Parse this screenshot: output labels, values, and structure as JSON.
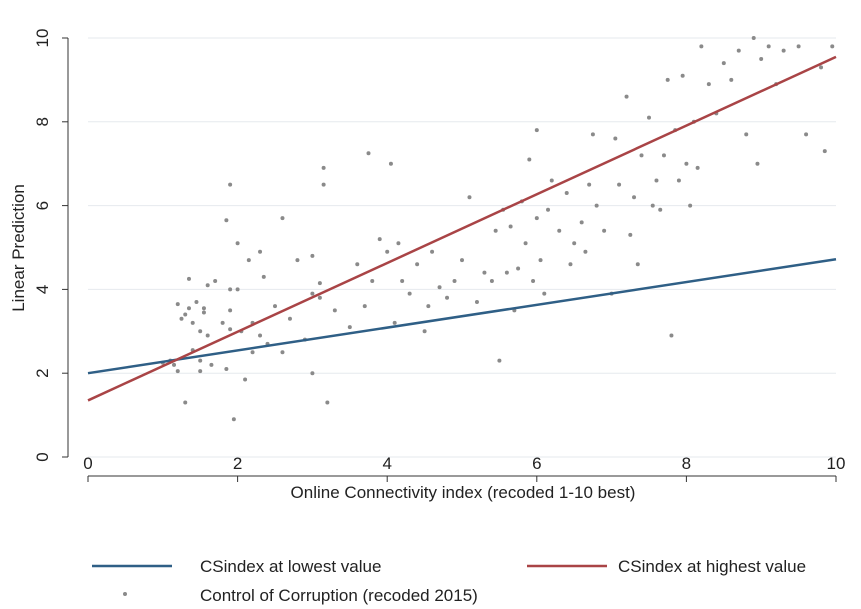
{
  "chart_data": {
    "type": "scatter",
    "title": "",
    "xlabel": "Online Connectivity index (recoded 1-10 best)",
    "ylabel": "Linear Prediction",
    "xlim": [
      0,
      10
    ],
    "ylim": [
      0,
      10
    ],
    "xticks": [
      "0",
      "2",
      "4",
      "6",
      "8",
      "10"
    ],
    "yticks": [
      "0",
      "2",
      "4",
      "6",
      "8",
      "10"
    ],
    "grid": "horizontal",
    "legend_position": "bottom",
    "lines": [
      {
        "name": "CSindex at lowest value",
        "color": "#2f5f86",
        "x": [
          0,
          10
        ],
        "y": [
          2.0,
          4.72
        ]
      },
      {
        "name": "CSindex at highest value",
        "color": "#a94446",
        "x": [
          0,
          10
        ],
        "y": [
          1.35,
          9.55
        ]
      }
    ],
    "scatter": {
      "name": "Control of Corruption (recoded 2015)",
      "color": "#8a8a8a",
      "points": [
        [
          1.0,
          2.25
        ],
        [
          1.1,
          2.3
        ],
        [
          1.15,
          2.2
        ],
        [
          1.2,
          2.05
        ],
        [
          1.2,
          3.65
        ],
        [
          1.25,
          3.3
        ],
        [
          1.3,
          3.4
        ],
        [
          1.3,
          1.3
        ],
        [
          1.35,
          3.55
        ],
        [
          1.35,
          4.25
        ],
        [
          1.4,
          3.2
        ],
        [
          1.4,
          2.55
        ],
        [
          1.45,
          3.7
        ],
        [
          1.5,
          3.0
        ],
        [
          1.5,
          2.3
        ],
        [
          1.5,
          2.05
        ],
        [
          1.55,
          3.45
        ],
        [
          1.55,
          3.55
        ],
        [
          1.6,
          4.1
        ],
        [
          1.6,
          2.9
        ],
        [
          1.65,
          2.2
        ],
        [
          1.7,
          4.2
        ],
        [
          1.8,
          3.2
        ],
        [
          1.85,
          5.65
        ],
        [
          1.85,
          2.1
        ],
        [
          1.9,
          6.5
        ],
        [
          1.9,
          4.0
        ],
        [
          1.9,
          3.5
        ],
        [
          1.9,
          3.05
        ],
        [
          1.95,
          0.9
        ],
        [
          2.0,
          4.0
        ],
        [
          2.0,
          5.1
        ],
        [
          2.05,
          3.0
        ],
        [
          2.1,
          1.85
        ],
        [
          2.15,
          4.7
        ],
        [
          2.2,
          3.2
        ],
        [
          2.2,
          2.5
        ],
        [
          2.3,
          4.9
        ],
        [
          2.3,
          2.9
        ],
        [
          2.35,
          4.3
        ],
        [
          2.4,
          2.7
        ],
        [
          2.5,
          3.6
        ],
        [
          2.6,
          5.7
        ],
        [
          2.6,
          2.5
        ],
        [
          2.7,
          3.3
        ],
        [
          2.8,
          4.7
        ],
        [
          2.9,
          2.8
        ],
        [
          3.0,
          3.9
        ],
        [
          3.0,
          4.8
        ],
        [
          3.0,
          2.0
        ],
        [
          3.1,
          4.15
        ],
        [
          3.1,
          3.8
        ],
        [
          3.15,
          6.5
        ],
        [
          3.15,
          6.9
        ],
        [
          3.2,
          1.3
        ],
        [
          3.3,
          3.5
        ],
        [
          3.5,
          3.1
        ],
        [
          3.6,
          4.6
        ],
        [
          3.7,
          3.6
        ],
        [
          3.75,
          7.25
        ],
        [
          3.8,
          4.2
        ],
        [
          3.9,
          5.2
        ],
        [
          4.0,
          4.9
        ],
        [
          4.05,
          7.0
        ],
        [
          4.1,
          3.2
        ],
        [
          4.15,
          5.1
        ],
        [
          4.2,
          4.2
        ],
        [
          4.3,
          3.9
        ],
        [
          4.4,
          4.6
        ],
        [
          4.5,
          3.0
        ],
        [
          4.55,
          3.6
        ],
        [
          4.6,
          4.9
        ],
        [
          4.7,
          4.05
        ],
        [
          4.8,
          3.8
        ],
        [
          4.9,
          4.2
        ],
        [
          5.0,
          4.7
        ],
        [
          5.1,
          6.2
        ],
        [
          5.2,
          3.7
        ],
        [
          5.3,
          4.4
        ],
        [
          5.4,
          4.2
        ],
        [
          5.45,
          5.4
        ],
        [
          5.5,
          2.3
        ],
        [
          5.55,
          5.9
        ],
        [
          5.6,
          4.4
        ],
        [
          5.65,
          5.5
        ],
        [
          5.7,
          3.5
        ],
        [
          5.75,
          4.5
        ],
        [
          5.8,
          6.1
        ],
        [
          5.85,
          5.1
        ],
        [
          5.9,
          7.1
        ],
        [
          5.95,
          4.2
        ],
        [
          6.0,
          7.8
        ],
        [
          6.0,
          5.7
        ],
        [
          6.05,
          4.7
        ],
        [
          6.1,
          3.9
        ],
        [
          6.15,
          5.9
        ],
        [
          6.2,
          6.6
        ],
        [
          6.3,
          5.4
        ],
        [
          6.4,
          6.3
        ],
        [
          6.45,
          4.6
        ],
        [
          6.5,
          5.1
        ],
        [
          6.6,
          5.6
        ],
        [
          6.65,
          4.9
        ],
        [
          6.7,
          6.5
        ],
        [
          6.75,
          7.7
        ],
        [
          6.8,
          6.0
        ],
        [
          6.9,
          5.4
        ],
        [
          7.0,
          3.9
        ],
        [
          7.05,
          7.6
        ],
        [
          7.1,
          6.5
        ],
        [
          7.2,
          8.6
        ],
        [
          7.25,
          5.3
        ],
        [
          7.3,
          6.2
        ],
        [
          7.35,
          4.6
        ],
        [
          7.4,
          7.2
        ],
        [
          7.5,
          8.1
        ],
        [
          7.55,
          6.0
        ],
        [
          7.6,
          6.6
        ],
        [
          7.65,
          5.9
        ],
        [
          7.7,
          7.2
        ],
        [
          7.75,
          9.0
        ],
        [
          7.8,
          2.9
        ],
        [
          7.85,
          7.8
        ],
        [
          7.9,
          6.6
        ],
        [
          7.95,
          9.1
        ],
        [
          8.0,
          7.0
        ],
        [
          8.05,
          6.0
        ],
        [
          8.1,
          8.0
        ],
        [
          8.15,
          6.9
        ],
        [
          8.2,
          9.8
        ],
        [
          8.3,
          8.9
        ],
        [
          8.4,
          8.2
        ],
        [
          8.5,
          9.4
        ],
        [
          8.6,
          9.0
        ],
        [
          8.7,
          9.7
        ],
        [
          8.8,
          7.7
        ],
        [
          8.9,
          10.0
        ],
        [
          8.95,
          7.0
        ],
        [
          9.0,
          9.5
        ],
        [
          9.1,
          9.8
        ],
        [
          9.2,
          8.9
        ],
        [
          9.3,
          9.7
        ],
        [
          9.5,
          9.8
        ],
        [
          9.6,
          7.7
        ],
        [
          9.8,
          9.3
        ],
        [
          9.85,
          7.3
        ],
        [
          9.95,
          9.8
        ]
      ]
    }
  }
}
